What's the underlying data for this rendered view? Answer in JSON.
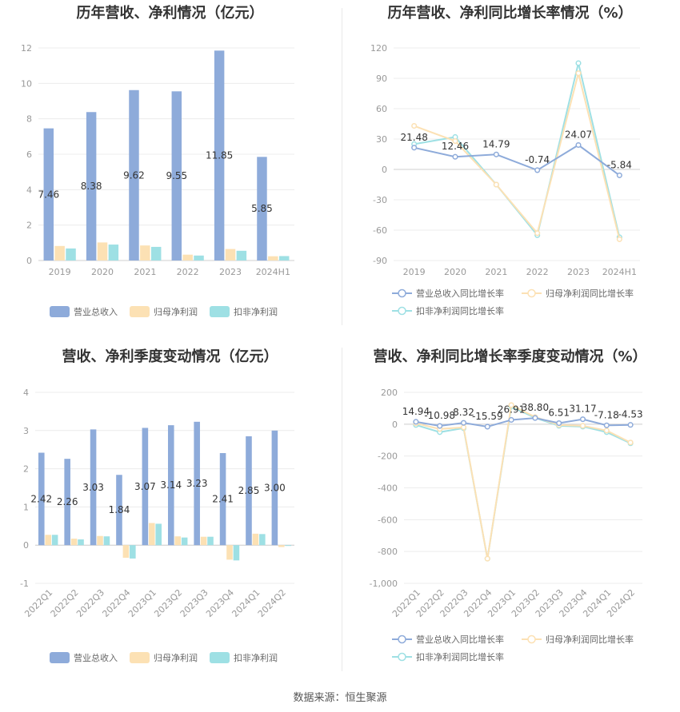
{
  "source_note": "数据来源：恒生聚源",
  "chart_data": [
    {
      "type": "bar",
      "title": "历年营收、净利情况（亿元）",
      "categories": [
        "2019",
        "2020",
        "2021",
        "2022",
        "2023",
        "2024H1"
      ],
      "ylim": [
        0,
        12
      ],
      "yticks": [
        "0",
        "2",
        "4",
        "6",
        "8",
        "10",
        "12"
      ],
      "grid": true,
      "legend": "bottom",
      "series": [
        {
          "name": "营业总收入",
          "color": "#8eabda",
          "values": [
            7.46,
            8.38,
            9.62,
            9.55,
            11.85,
            5.85
          ]
        },
        {
          "name": "归母净利润",
          "color": "#fce1b4",
          "values": [
            0.82,
            1.02,
            0.85,
            0.33,
            0.65,
            0.24
          ]
        },
        {
          "name": "扣非净利润",
          "color": "#9ee0e4",
          "values": [
            0.68,
            0.9,
            0.77,
            0.28,
            0.55,
            0.25
          ]
        }
      ],
      "data_labels": [
        "7.46",
        "8.38",
        "9.62",
        "9.55",
        "11.85",
        "5.85"
      ]
    },
    {
      "type": "line",
      "title": "历年营收、净利同比增长率情况（%）",
      "categories": [
        "2019",
        "2020",
        "2021",
        "2022",
        "2023",
        "2024H1"
      ],
      "ylim": [
        -90,
        120
      ],
      "yticks": [
        "-90",
        "-60",
        "-30",
        "0",
        "30",
        "60",
        "90",
        "120"
      ],
      "grid": true,
      "legend": "bottom",
      "series": [
        {
          "name": "营业总收入同比增长率",
          "color": "#8eabda",
          "values": [
            21.48,
            12.46,
            14.79,
            -0.74,
            24.07,
            -5.84
          ]
        },
        {
          "name": "归母净利润同比增长率",
          "color": "#fce1b4",
          "values": [
            43,
            28,
            -15,
            -63,
            95,
            -69
          ]
        },
        {
          "name": "扣非净利润同比增长率",
          "color": "#9ee0e4",
          "values": [
            25,
            32,
            -15,
            -65,
            105,
            -67
          ]
        }
      ],
      "data_labels": [
        "21.48",
        "12.46",
        "14.79",
        "-0.74",
        "24.07",
        "-5.84"
      ]
    },
    {
      "type": "bar",
      "title": "营收、净利季度变动情况（亿元）",
      "categories": [
        "2022Q1",
        "2022Q2",
        "2022Q3",
        "2022Q4",
        "2023Q1",
        "2023Q2",
        "2023Q3",
        "2023Q4",
        "2024Q1",
        "2024Q2"
      ],
      "ylim": [
        -1,
        4
      ],
      "yticks": [
        "-1",
        "0",
        "1",
        "2",
        "3",
        "4"
      ],
      "grid": true,
      "legend": "bottom",
      "series": [
        {
          "name": "营业总收入",
          "color": "#8eabda",
          "values": [
            2.42,
            2.26,
            3.03,
            1.84,
            3.07,
            3.14,
            3.23,
            2.41,
            2.85,
            3.0
          ]
        },
        {
          "name": "归母净利润",
          "color": "#fce1b4",
          "values": [
            0.27,
            0.17,
            0.24,
            -0.33,
            0.58,
            0.23,
            0.22,
            -0.38,
            0.3,
            -0.05
          ]
        },
        {
          "name": "扣非净利润",
          "color": "#9ee0e4",
          "values": [
            0.27,
            0.15,
            0.23,
            -0.35,
            0.56,
            0.2,
            0.22,
            -0.4,
            0.29,
            -0.02
          ]
        }
      ],
      "data_labels": [
        "2.42",
        "2.26",
        "3.03",
        "1.84",
        "3.07",
        "3.14",
        "3.23",
        "2.41",
        "2.85",
        "3.00"
      ]
    },
    {
      "type": "line",
      "title": "营收、净利同比增长率季度变动情况（%）",
      "categories": [
        "2022Q1",
        "2022Q2",
        "2022Q3",
        "2022Q4",
        "2023Q1",
        "2023Q2",
        "2023Q3",
        "2023Q4",
        "2024Q1",
        "2024Q2"
      ],
      "ylim": [
        -1000,
        200
      ],
      "yticks": [
        "-1,000",
        "-800",
        "-600",
        "-400",
        "-200",
        "0",
        "200"
      ],
      "grid": true,
      "legend": "bottom",
      "series": [
        {
          "name": "营业总收入同比增长率",
          "color": "#8eabda",
          "values": [
            14.94,
            -10.98,
            8.32,
            -15.59,
            26.91,
            38.8,
            6.51,
            31.17,
            -7.18,
            -4.53
          ]
        },
        {
          "name": "归母净利润同比增长率",
          "color": "#fce1b4",
          "values": [
            5,
            -30,
            -20,
            -845,
            120,
            45,
            -5,
            -10,
            -40,
            -115
          ]
        },
        {
          "name": "扣非净利润同比增长率",
          "color": "#9ee0e4",
          "values": [
            -5,
            -50,
            -25,
            -845,
            110,
            40,
            -10,
            -15,
            -50,
            -120
          ]
        }
      ],
      "data_labels": [
        "14.94",
        "-10.98",
        "8.32",
        "-15.59",
        "26.91",
        "38.80",
        "6.51",
        "31.17",
        "-7.18",
        "-4.53"
      ]
    }
  ]
}
